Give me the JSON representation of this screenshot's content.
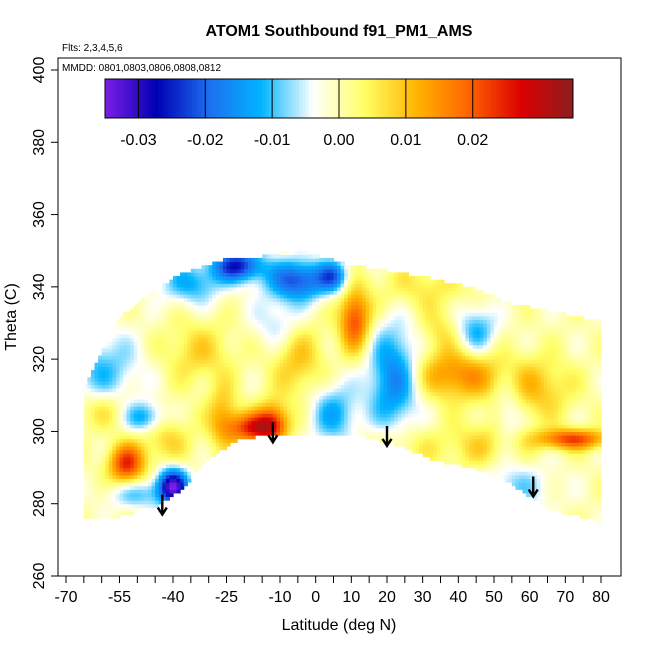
{
  "chart_data": {
    "type": "heatmap",
    "title": "ATOM1 Southbound f91_PM1_AMS",
    "flights_label": "Flts: 2,3,4,5,6",
    "dates_label": "MMDD: 0801,0803,0806,0808,0812",
    "xlabel": "Latitude (deg N)",
    "ylabel": "Theta (C)",
    "xlim": [
      -70,
      80
    ],
    "ylim": [
      260,
      400
    ],
    "x_ticks": [
      -70,
      -55,
      -40,
      -25,
      -10,
      0,
      10,
      20,
      30,
      40,
      50,
      60,
      70,
      80
    ],
    "x_minor_ticks": [
      -65,
      -60,
      -50,
      -45,
      -35,
      -30,
      -20,
      -15,
      -5,
      5,
      15,
      25,
      35,
      45,
      55,
      65,
      75
    ],
    "y_ticks": [
      260,
      280,
      300,
      320,
      340,
      360,
      380,
      400
    ],
    "colorbar": {
      "range": [
        -0.035,
        0.035
      ],
      "ticks": [
        -0.03,
        -0.02,
        -0.01,
        0.0,
        0.01,
        0.02
      ],
      "tick_labels": [
        "-0.03",
        "-0.02",
        "-0.01",
        "0.00",
        "0.01",
        "0.02"
      ],
      "colors": [
        "#7b1fe6",
        "#0000b4",
        "#1e6ef0",
        "#00b4ff",
        "#ffffff",
        "#ffff64",
        "#ffb400",
        "#ff6400",
        "#dc0000",
        "#8c1e1e"
      ]
    },
    "tropopause_arrows": [
      {
        "lat": -43,
        "theta": 277
      },
      {
        "lat": -12,
        "theta": 297
      },
      {
        "lat": 20,
        "theta": 296
      },
      {
        "lat": 61,
        "theta": 282
      }
    ],
    "grid": false,
    "legend": "top (colorbar)"
  }
}
